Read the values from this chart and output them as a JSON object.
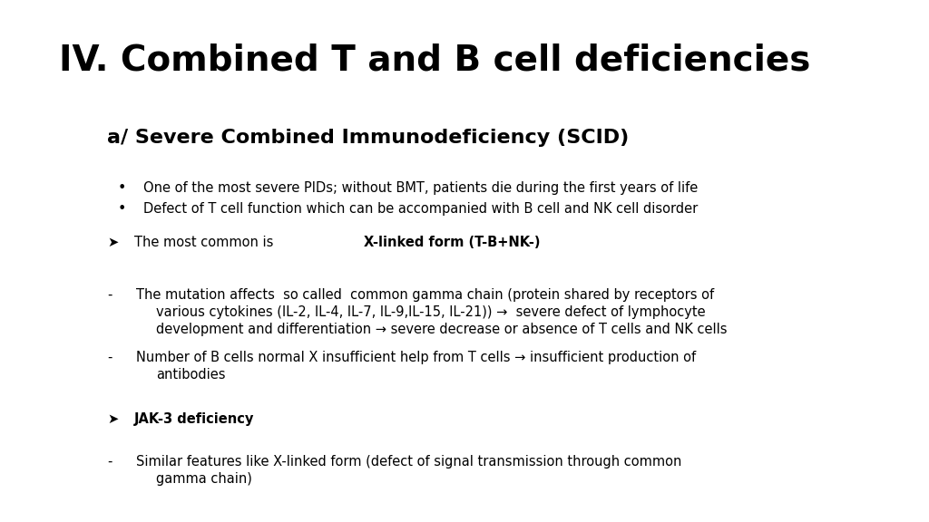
{
  "title": "IV. Combined T and B cell deficiencies",
  "subtitle": "a/ Severe Combined Immunodeficiency (SCID)",
  "bg_color": "#ffffff",
  "title_color": "#000000",
  "body_color": "#000000",
  "title_fontsize": 28,
  "subtitle_fontsize": 16,
  "body_fontsize": 10.5,
  "bullet_items": [
    "One of the most severe PIDs; without BMT, patients die during the first years of life",
    "Defect of T cell function which can be accompanied with B cell and NK cell disorder"
  ],
  "arrow_item_1_normal": "The most common is ",
  "arrow_item_1_bold": "X-linked form (T-B+NK-)",
  "dash_item1_lines": [
    "The mutation affects  so called  common gamma chain (protein shared by receptors of",
    "various cytokines (IL-2, IL-4, IL-7, IL-9,IL-15, IL-21)) →  severe defect of lymphocyte",
    "development and differentiation → severe decrease or absence of T cells and NK cells"
  ],
  "dash_item2_lines": [
    "Number of B cells normal X insufficient help from T cells → insufficient production of",
    "antibodies"
  ],
  "arrow_item_2_bold": "JAK-3 deficiency",
  "last_dash_lines": [
    "Similar features like X-linked form (defect of signal transmission through common",
    "gamma chain)"
  ]
}
